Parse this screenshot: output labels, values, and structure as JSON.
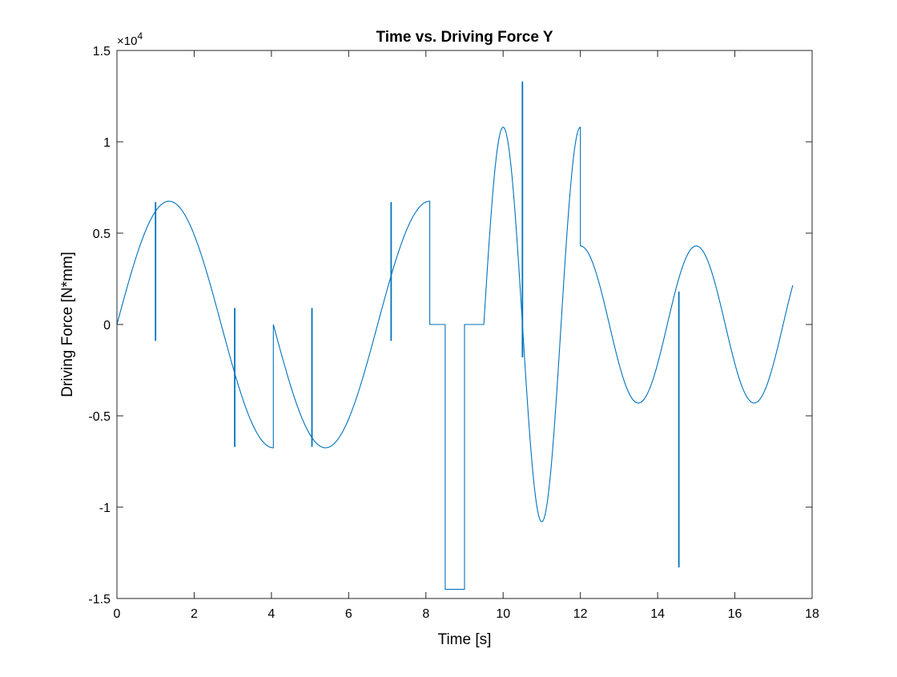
{
  "chart_data": {
    "type": "line",
    "title": "Time vs. Driving Force Y",
    "xlabel": "Time [s]",
    "ylabel": "Driving Force [N*mm]",
    "xlim": [
      0,
      18
    ],
    "ylim": [
      -1.5,
      1.5
    ],
    "y_exponent_label": "×10",
    "y_exponent_power": "4",
    "y_scale_factor": 10000,
    "grid": false,
    "box": true,
    "x_ticks": [
      0,
      2,
      4,
      6,
      8,
      10,
      12,
      14,
      16,
      18
    ],
    "x_tick_labels": [
      "0",
      "2",
      "4",
      "6",
      "8",
      "10",
      "12",
      "14",
      "16",
      "18"
    ],
    "y_ticks": [
      1.5,
      1,
      0.5,
      0,
      -0.5,
      -1,
      -1.5
    ],
    "y_tick_labels": [
      "1.5",
      "1",
      "0.5",
      "0",
      "-0.5",
      "-1",
      "-1.5"
    ],
    "series": [
      {
        "color": "#0072BD",
        "description_segments": [
          {
            "kind": "sine",
            "t0": 0,
            "t1": 4.05,
            "amplitude": 0.675,
            "period": 5.4,
            "phase_start": 0
          },
          {
            "kind": "sine",
            "t0": 4.05,
            "t1": 8.1,
            "amplitude": 0.675,
            "period": 5.4,
            "phase_start": 0.5
          },
          {
            "kind": "flat",
            "t0": 8.1,
            "t1": 8.5,
            "value": 0
          },
          {
            "kind": "step",
            "t0": 8.5,
            "t1": 9.0,
            "value": -1.45
          },
          {
            "kind": "flat",
            "t0": 9.0,
            "t1": 9.5,
            "value": 0
          },
          {
            "kind": "sine",
            "t0": 9.5,
            "t1": 12.0,
            "amplitude": 1.08,
            "period": 2.0,
            "phase_start": 0,
            "note": "half-wave"
          },
          {
            "kind": "sine",
            "t0": 12.0,
            "t1": 17.5,
            "amplitude": 0.43,
            "period": 3.0,
            "phase_start": 0.25
          }
        ],
        "spikes": [
          {
            "t": 1.0,
            "top": 0.67,
            "bottom": -0.09
          },
          {
            "t": 3.05,
            "top": 0.09,
            "bottom": -0.67
          },
          {
            "t": 5.05,
            "top": 0.09,
            "bottom": -0.67
          },
          {
            "t": 7.1,
            "top": 0.67,
            "bottom": -0.09
          },
          {
            "t": 10.5,
            "top": 1.33,
            "bottom": -0.18
          },
          {
            "t": 14.55,
            "top": 0.18,
            "bottom": -1.33
          }
        ]
      }
    ]
  }
}
